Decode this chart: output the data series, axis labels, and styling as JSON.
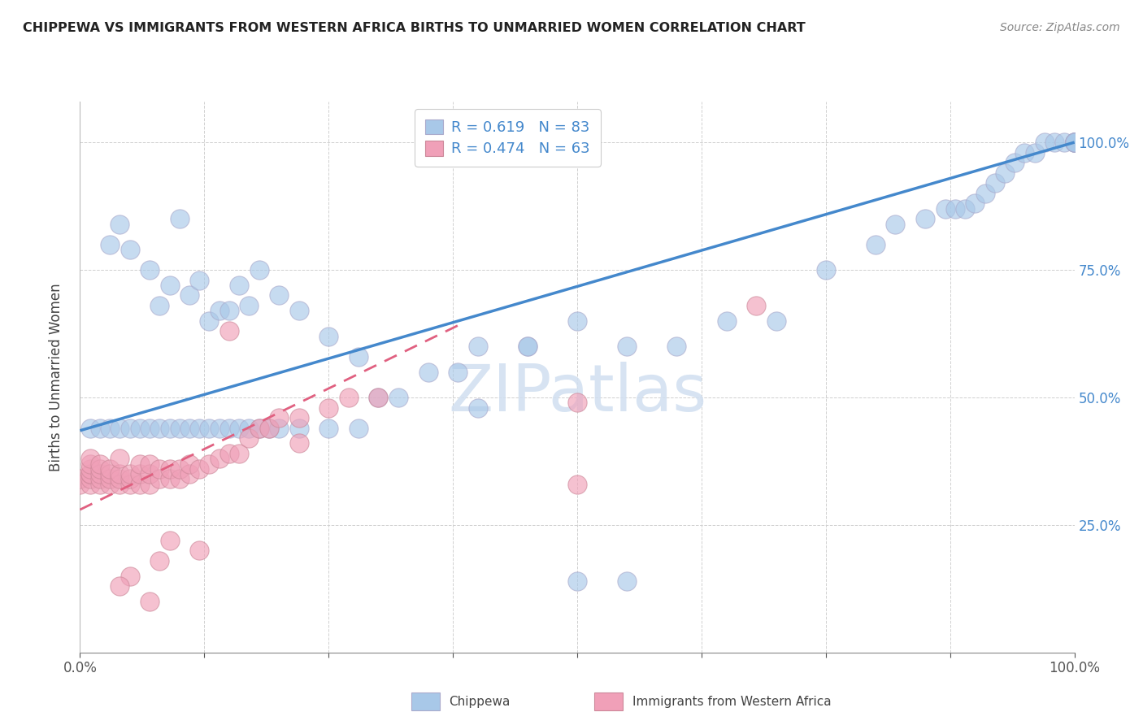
{
  "title": "CHIPPEWA VS IMMIGRANTS FROM WESTERN AFRICA BIRTHS TO UNMARRIED WOMEN CORRELATION CHART",
  "source": "Source: ZipAtlas.com",
  "ylabel": "Births to Unmarried Women",
  "xmin": 0.0,
  "xmax": 1.0,
  "ymin": 0.0,
  "ymax": 1.08,
  "chippewa_R": 0.619,
  "chippewa_N": 83,
  "western_africa_R": 0.474,
  "western_africa_N": 63,
  "chippewa_color": "#a8c8e8",
  "western_africa_color": "#f0a0b8",
  "trend_blue_color": "#4488cc",
  "trend_pink_color": "#e06080",
  "watermark_color": "#d0dff0",
  "background_color": "#ffffff",
  "chippewa_x": [
    0.01,
    0.02,
    0.03,
    0.04,
    0.05,
    0.06,
    0.07,
    0.08,
    0.09,
    0.1,
    0.11,
    0.12,
    0.13,
    0.14,
    0.15,
    0.16,
    0.17,
    0.18,
    0.19,
    0.2,
    0.22,
    0.25,
    0.28,
    0.3,
    0.32,
    0.35,
    0.38,
    0.4,
    0.45,
    0.5,
    0.55,
    0.6,
    0.65,
    0.7,
    0.75,
    0.8,
    0.82,
    0.85,
    0.87,
    0.88,
    0.89,
    0.9,
    0.91,
    0.92,
    0.93,
    0.94,
    0.95,
    0.96,
    0.97,
    0.98,
    0.99,
    1.0,
    1.0,
    1.0,
    1.0,
    1.0,
    1.0,
    1.0,
    1.0,
    1.0,
    0.03,
    0.04,
    0.05,
    0.07,
    0.08,
    0.09,
    0.1,
    0.11,
    0.12,
    0.13,
    0.14,
    0.15,
    0.16,
    0.17,
    0.18,
    0.2,
    0.22,
    0.25,
    0.28,
    0.4,
    0.45,
    0.5,
    0.55
  ],
  "chippewa_y": [
    0.44,
    0.44,
    0.44,
    0.44,
    0.44,
    0.44,
    0.44,
    0.44,
    0.44,
    0.44,
    0.44,
    0.44,
    0.44,
    0.44,
    0.44,
    0.44,
    0.44,
    0.44,
    0.44,
    0.44,
    0.44,
    0.44,
    0.44,
    0.5,
    0.5,
    0.55,
    0.55,
    0.6,
    0.6,
    0.65,
    0.6,
    0.6,
    0.65,
    0.65,
    0.75,
    0.8,
    0.84,
    0.85,
    0.87,
    0.87,
    0.87,
    0.88,
    0.9,
    0.92,
    0.94,
    0.96,
    0.98,
    0.98,
    1.0,
    1.0,
    1.0,
    1.0,
    1.0,
    1.0,
    1.0,
    1.0,
    1.0,
    1.0,
    1.0,
    1.0,
    0.8,
    0.84,
    0.79,
    0.75,
    0.68,
    0.72,
    0.85,
    0.7,
    0.73,
    0.65,
    0.67,
    0.67,
    0.72,
    0.68,
    0.75,
    0.7,
    0.67,
    0.62,
    0.58,
    0.48,
    0.6,
    0.14,
    0.14
  ],
  "western_africa_x": [
    0.0,
    0.0,
    0.01,
    0.01,
    0.01,
    0.01,
    0.01,
    0.01,
    0.01,
    0.02,
    0.02,
    0.02,
    0.02,
    0.02,
    0.03,
    0.03,
    0.03,
    0.03,
    0.04,
    0.04,
    0.04,
    0.04,
    0.05,
    0.05,
    0.05,
    0.06,
    0.06,
    0.06,
    0.07,
    0.07,
    0.07,
    0.08,
    0.08,
    0.09,
    0.09,
    0.1,
    0.1,
    0.11,
    0.11,
    0.12,
    0.13,
    0.14,
    0.15,
    0.16,
    0.17,
    0.18,
    0.19,
    0.2,
    0.22,
    0.25,
    0.27,
    0.3,
    0.15,
    0.09,
    0.08,
    0.05,
    0.04,
    0.07,
    0.12,
    0.22,
    0.5,
    0.5,
    0.68
  ],
  "western_africa_y": [
    0.33,
    0.34,
    0.33,
    0.34,
    0.35,
    0.35,
    0.36,
    0.37,
    0.38,
    0.33,
    0.34,
    0.35,
    0.36,
    0.37,
    0.33,
    0.34,
    0.35,
    0.36,
    0.33,
    0.34,
    0.35,
    0.38,
    0.33,
    0.34,
    0.35,
    0.33,
    0.35,
    0.37,
    0.33,
    0.35,
    0.37,
    0.34,
    0.36,
    0.34,
    0.36,
    0.34,
    0.36,
    0.35,
    0.37,
    0.36,
    0.37,
    0.38,
    0.39,
    0.39,
    0.42,
    0.44,
    0.44,
    0.46,
    0.46,
    0.48,
    0.5,
    0.5,
    0.63,
    0.22,
    0.18,
    0.15,
    0.13,
    0.1,
    0.2,
    0.41,
    0.33,
    0.49,
    0.68
  ]
}
